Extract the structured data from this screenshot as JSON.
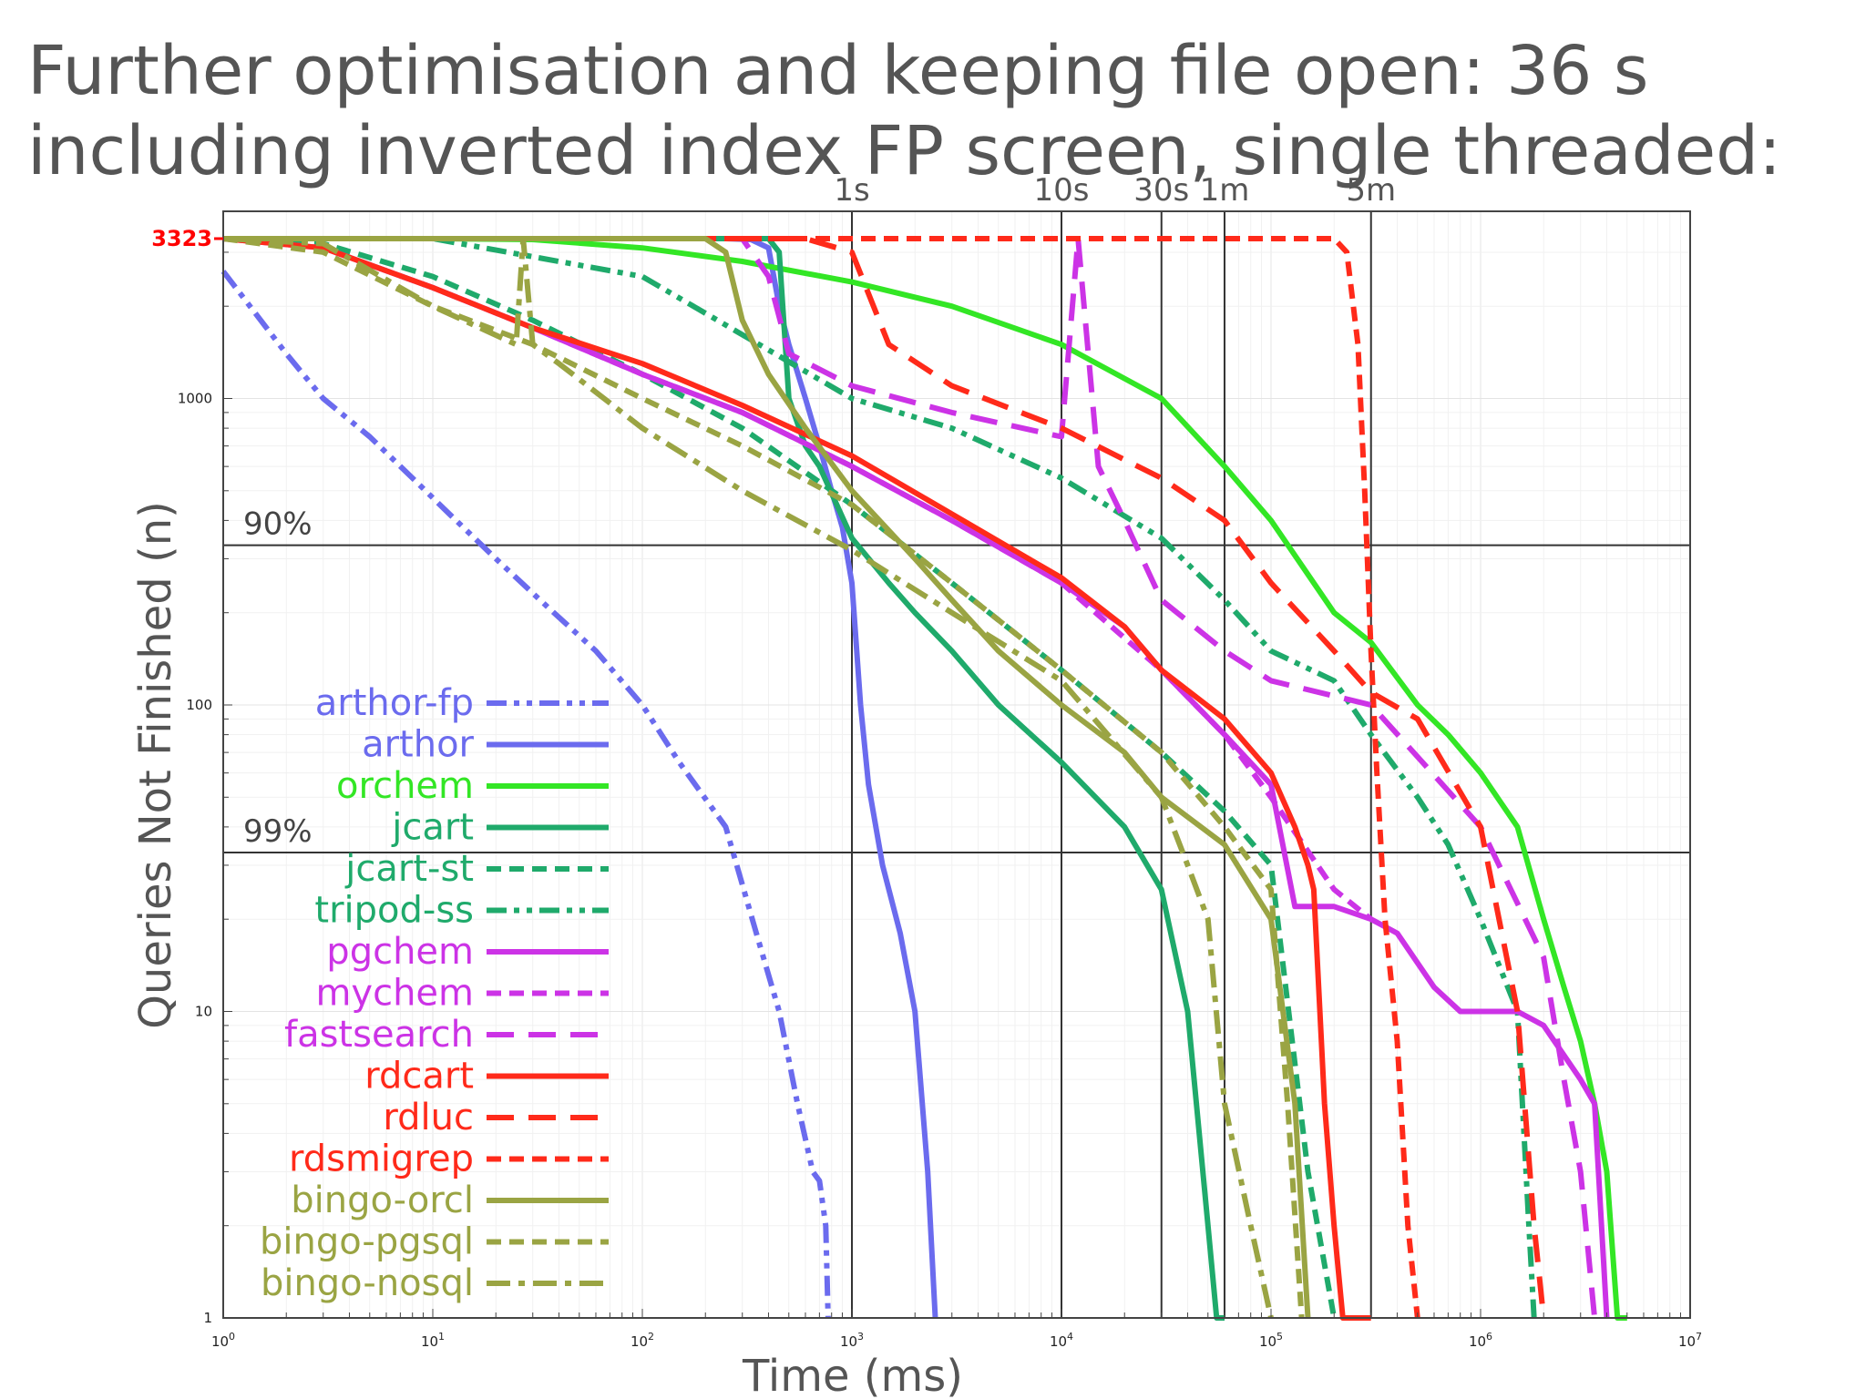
{
  "slide": {
    "title": "Further optimisation and keeping file open: 36 s including inverted index FP screen, single threaded:"
  },
  "chart_data": {
    "type": "line",
    "xlabel": "Time (ms)",
    "ylabel": "Queries Not Finished (n)",
    "x_scale": "log",
    "y_scale": "log",
    "xlim": [
      1,
      10000000
    ],
    "ylim": [
      1,
      3323
    ],
    "x_ticks": [
      {
        "base": "10",
        "exp": "0"
      },
      {
        "base": "10",
        "exp": "1"
      },
      {
        "base": "10",
        "exp": "2"
      },
      {
        "base": "10",
        "exp": "3"
      },
      {
        "base": "10",
        "exp": "4"
      },
      {
        "base": "10",
        "exp": "5"
      },
      {
        "base": "10",
        "exp": "6"
      },
      {
        "base": "10",
        "exp": "7"
      }
    ],
    "y_ticks": [
      "1",
      "10",
      "100",
      "1000"
    ],
    "y_max_label": "3323",
    "time_markers": [
      {
        "label": "1s",
        "x": 1000
      },
      {
        "label": "10s",
        "x": 10000
      },
      {
        "label": "30s",
        "x": 30000
      },
      {
        "label": "1m",
        "x": 60000
      },
      {
        "label": "5m",
        "x": 300000
      }
    ],
    "percent_markers": [
      {
        "label": "90%",
        "y": 332
      },
      {
        "label": "99%",
        "y": 33
      }
    ],
    "grid": true,
    "legend_position": "bottom-left",
    "series": [
      {
        "name": "arthor-fp",
        "color": "#6b6bee",
        "dash": "dashdotdot",
        "x": [
          1,
          2,
          3,
          5,
          8,
          12,
          20,
          35,
          60,
          100,
          150,
          250,
          350,
          450,
          550,
          650,
          700,
          750,
          770
        ],
        "y": [
          2600,
          1400,
          1000,
          750,
          550,
          420,
          300,
          210,
          150,
          100,
          65,
          40,
          18,
          10,
          5,
          3,
          2.8,
          2,
          1
        ]
      },
      {
        "name": "arthor",
        "color": "#6b6bee",
        "dash": "solid",
        "x": [
          1,
          10,
          100,
          250,
          330,
          400,
          450,
          500,
          600,
          700,
          800,
          900,
          1000,
          1100,
          1200,
          1400,
          1700,
          2000,
          2300,
          2500
        ],
        "y": [
          3323,
          3323,
          3323,
          3323,
          3300,
          3100,
          2000,
          1500,
          1000,
          700,
          500,
          380,
          250,
          100,
          55,
          30,
          18,
          10,
          3,
          1
        ]
      },
      {
        "name": "orchem",
        "color": "#33e625",
        "dash": "solid",
        "x": [
          1,
          10,
          30,
          100,
          300,
          1000,
          3000,
          10000,
          30000,
          60000,
          100000,
          200000,
          300000,
          500000,
          700000,
          1000000,
          1500000,
          2000000,
          2500000,
          3000000,
          3500000,
          4000000,
          4500000,
          5000000
        ],
        "y": [
          3323,
          3323,
          3300,
          3100,
          2800,
          2400,
          2000,
          1500,
          1000,
          600,
          400,
          200,
          160,
          100,
          80,
          60,
          40,
          20,
          12,
          8,
          5,
          3,
          1,
          1
        ]
      },
      {
        "name": "jcart",
        "color": "#1faa6b",
        "dash": "solid",
        "x": [
          1,
          100,
          300,
          400,
          450,
          500,
          600,
          700,
          1000,
          1500,
          2000,
          3000,
          5000,
          10000,
          20000,
          30000,
          40000,
          50000,
          55000,
          60000
        ],
        "y": [
          3323,
          3323,
          3323,
          3323,
          3000,
          1000,
          700,
          600,
          350,
          250,
          200,
          150,
          100,
          65,
          40,
          25,
          10,
          2,
          1,
          1
        ]
      },
      {
        "name": "jcart-st",
        "color": "#1faa6b",
        "dash": "dash",
        "x": [
          1,
          3,
          10,
          30,
          100,
          300,
          1000,
          3000,
          10000,
          30000,
          60000,
          100000,
          150000,
          200000
        ],
        "y": [
          3323,
          3200,
          2500,
          1800,
          1200,
          800,
          450,
          250,
          130,
          70,
          45,
          30,
          3,
          1
        ]
      },
      {
        "name": "tripod-ss",
        "color": "#1faa6b",
        "dash": "dashdotdot",
        "x": [
          1,
          10,
          100,
          1000,
          3000,
          10000,
          30000,
          60000,
          100000,
          200000,
          300000,
          500000,
          700000,
          1000000,
          1500000,
          1700000,
          1800000
        ],
        "y": [
          3323,
          3323,
          2500,
          1000,
          800,
          550,
          350,
          220,
          150,
          120,
          80,
          50,
          35,
          20,
          10,
          2,
          1
        ]
      },
      {
        "name": "pgchem",
        "color": "#cc33e6",
        "dash": "solid",
        "x": [
          1,
          3,
          10,
          30,
          100,
          300,
          1000,
          3000,
          10000,
          20000,
          30000,
          60000,
          100000,
          130000,
          200000,
          300000,
          400000,
          600000,
          800000,
          1000000,
          1500000,
          2000000,
          3000000,
          3500000,
          4000000
        ],
        "y": [
          3323,
          3100,
          2300,
          1700,
          1200,
          900,
          600,
          400,
          250,
          180,
          130,
          80,
          55,
          22,
          22,
          20,
          18,
          12,
          10,
          10,
          10,
          9,
          6,
          5,
          1
        ]
      },
      {
        "name": "mychem",
        "color": "#cc33e6",
        "dash": "dash",
        "x": [
          1,
          3,
          10,
          30,
          100,
          300,
          1000,
          3000,
          10000,
          30000,
          60000,
          100000,
          200000,
          300000
        ],
        "y": [
          3323,
          3100,
          2300,
          1700,
          1200,
          900,
          600,
          400,
          250,
          130,
          80,
          50,
          25,
          20
        ]
      },
      {
        "name": "fastsearch",
        "color": "#cc33e6",
        "dash": "longdash",
        "x": [
          1,
          100,
          300,
          400,
          500,
          1000,
          3000,
          10000,
          12000,
          15000,
          20000,
          30000,
          60000,
          100000,
          300000,
          1000000,
          2000000,
          2500000,
          3000000,
          3500000
        ],
        "y": [
          3323,
          3323,
          3323,
          2500,
          1400,
          1100,
          900,
          750,
          3323,
          600,
          400,
          220,
          150,
          120,
          100,
          40,
          15,
          6,
          3,
          1
        ]
      },
      {
        "name": "rdcart",
        "color": "#ff2a1a",
        "dash": "solid",
        "x": [
          1,
          3,
          10,
          30,
          100,
          300,
          1000,
          3000,
          10000,
          20000,
          30000,
          60000,
          100000,
          130000,
          150000,
          160000,
          180000,
          200000,
          220000,
          250000,
          300000
        ],
        "y": [
          3323,
          3100,
          2300,
          1700,
          1300,
          950,
          650,
          420,
          260,
          180,
          130,
          90,
          60,
          40,
          30,
          25,
          5,
          2,
          1,
          1,
          1
        ]
      },
      {
        "name": "rdluc",
        "color": "#ff2a1a",
        "dash": "longdash",
        "x": [
          1,
          100,
          600,
          1000,
          1500,
          3000,
          10000,
          30000,
          60000,
          100000,
          200000,
          300000,
          500000,
          1000000,
          1500000,
          1800000,
          2000000
        ],
        "y": [
          3323,
          3323,
          3323,
          3000,
          1500,
          1100,
          800,
          550,
          400,
          250,
          150,
          110,
          90,
          40,
          10,
          2,
          1
        ]
      },
      {
        "name": "rdsmigrep",
        "color": "#ff2a1a",
        "dash": "dash",
        "x": [
          1,
          10000,
          100000,
          200000,
          230000,
          260000,
          280000,
          300000,
          320000,
          350000,
          400000,
          450000,
          500000
        ],
        "y": [
          3323,
          3323,
          3323,
          3323,
          3000,
          1500,
          500,
          150,
          60,
          20,
          8,
          2,
          1
        ]
      },
      {
        "name": "bingo-orcl",
        "color": "#9aa443",
        "dash": "solid",
        "x": [
          1,
          100,
          200,
          250,
          300,
          400,
          600,
          1000,
          2000,
          3000,
          5000,
          10000,
          20000,
          30000,
          60000,
          100000,
          130000,
          150000
        ],
        "y": [
          3323,
          3323,
          3323,
          3000,
          1800,
          1200,
          800,
          500,
          300,
          220,
          150,
          100,
          70,
          50,
          35,
          20,
          5,
          1
        ]
      },
      {
        "name": "bingo-pgsql",
        "color": "#9aa443",
        "dash": "dash",
        "x": [
          1,
          3,
          10,
          30,
          100,
          300,
          1000,
          3000,
          10000,
          30000,
          60000,
          100000,
          120000,
          140000
        ],
        "y": [
          3323,
          3000,
          2000,
          1500,
          1000,
          700,
          450,
          250,
          130,
          70,
          40,
          25,
          5,
          1
        ]
      },
      {
        "name": "bingo-nosql",
        "color": "#9aa443",
        "dash": "dashdot",
        "x": [
          1,
          3,
          10,
          25,
          27,
          30,
          40,
          100,
          300,
          1000,
          3000,
          10000,
          30000,
          40000,
          50000,
          60000,
          80000,
          100000
        ],
        "y": [
          3323,
          3200,
          2000,
          1500,
          3323,
          1500,
          1300,
          800,
          500,
          320,
          200,
          120,
          50,
          30,
          20,
          5,
          2,
          1
        ]
      }
    ]
  }
}
